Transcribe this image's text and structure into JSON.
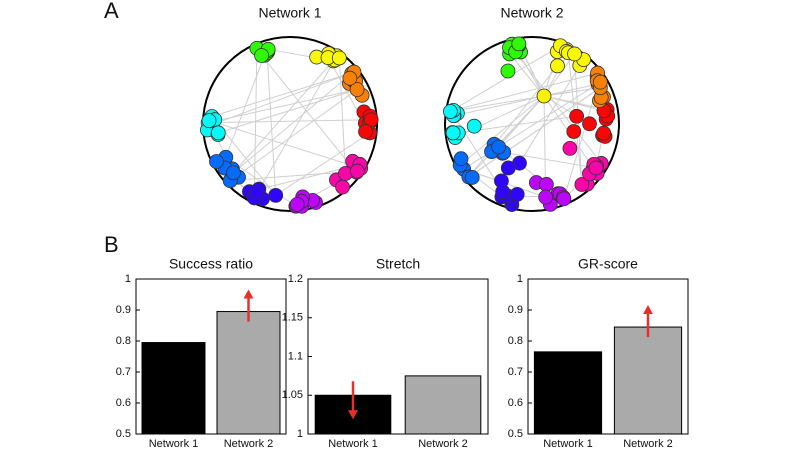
{
  "panel_labels": [
    "A",
    "B"
  ],
  "networks": [
    {
      "title": "Network 1"
    },
    {
      "title": "Network 2"
    }
  ],
  "chart_data": [
    {
      "type": "bar",
      "title": "Success ratio",
      "categories": [
        "Network 1",
        "Network 2"
      ],
      "values": [
        0.795,
        0.895
      ],
      "colors": [
        "#000000",
        "#aaaaaa"
      ],
      "arrows": [
        null,
        "up"
      ],
      "arrow_color": "#e8302a",
      "ylim": [
        0.5,
        1
      ],
      "yticks": [
        0.5,
        0.6,
        0.7,
        0.8,
        0.9,
        1
      ]
    },
    {
      "type": "bar",
      "title": "Stretch",
      "categories": [
        "Network 1",
        "Network 2"
      ],
      "values": [
        1.05,
        1.075
      ],
      "colors": [
        "#000000",
        "#aaaaaa"
      ],
      "arrows": [
        "down",
        null
      ],
      "arrow_color": "#e8302a",
      "ylim": [
        1,
        1.2
      ],
      "yticks": [
        1,
        1.05,
        1.1,
        1.15,
        1.2
      ]
    },
    {
      "type": "bar",
      "title": "GR-score",
      "categories": [
        "Network 1",
        "Network 2"
      ],
      "values": [
        0.765,
        0.845
      ],
      "colors": [
        "#000000",
        "#aaaaaa"
      ],
      "arrows": [
        null,
        "up"
      ],
      "arrow_color": "#e8302a",
      "ylim": [
        0.5,
        1
      ],
      "yticks": [
        0.5,
        0.6,
        0.7,
        0.8,
        0.9,
        1
      ]
    }
  ]
}
